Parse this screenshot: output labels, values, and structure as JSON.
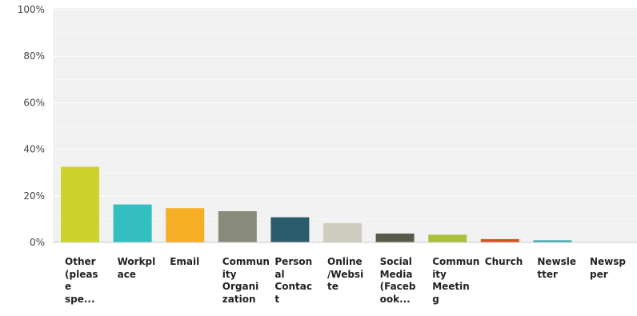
{
  "chart_data": {
    "type": "bar",
    "categories": [
      "Other (please specify)",
      "Workplace",
      "Email",
      "Community Organization",
      "Personal Contact",
      "Online/Website",
      "Social Media (Facebook...)",
      "Community Meeting",
      "Church",
      "Newsletter",
      "Newspaper"
    ],
    "category_labels_shown": [
      "Other\n(pleas\ne\nspe...",
      "Workpl\nace",
      "Email",
      "Commun\nity\nOrgani\nzation",
      "Person\nal\nContac\nt",
      "Online\n/Websi\nte",
      "Social\nMedia\n(Faceb\nook...",
      "Commun\nity\nMeetin\ng",
      "Church",
      "Newsle\ntter",
      "Newsp\nper"
    ],
    "values": [
      32.5,
      16.3,
      14.7,
      13.4,
      10.8,
      8.3,
      3.8,
      3.3,
      1.4,
      0.9,
      0.0
    ],
    "colors": [
      "#cdd32a",
      "#33bfc1",
      "#f5ae26",
      "#888a7a",
      "#2b5c6b",
      "#cfcdc0",
      "#5a5a4a",
      "#aabf3a",
      "#d4521f",
      "#34a8b0",
      "#cfcdc0"
    ],
    "ylim": [
      0,
      100
    ],
    "yticks": [
      "0%",
      "20%",
      "40%",
      "60%",
      "80%",
      "100%"
    ],
    "ytick_values": [
      0,
      20,
      40,
      60,
      80,
      100
    ],
    "grid": true,
    "title": "",
    "xlabel": "",
    "ylabel": ""
  }
}
